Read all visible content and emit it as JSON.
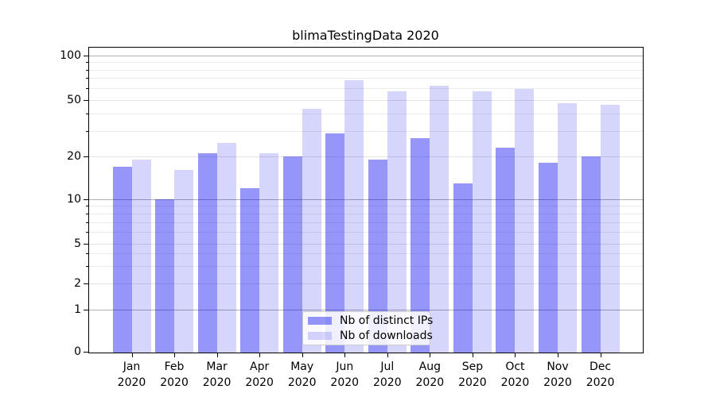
{
  "chart_data": {
    "type": "bar",
    "title": "blimaTestingData 2020",
    "categories": [
      "Jan",
      "Feb",
      "Mar",
      "Apr",
      "May",
      "Jun",
      "Jul",
      "Aug",
      "Sep",
      "Oct",
      "Nov",
      "Dec"
    ],
    "category_year": "2020",
    "series": [
      {
        "name": "Nb of distinct IPs",
        "color_hex": "#9a9af2",
        "color_rgba": "rgba(0,0,237,0.41)",
        "values": [
          17,
          10,
          21,
          12,
          20,
          29,
          19,
          27,
          13,
          23,
          18,
          20
        ]
      },
      {
        "name": "Nb of downloads",
        "color_hex": "#d8d8f8",
        "color_rgba": "rgba(0,0,237,0.16)",
        "values": [
          19,
          16,
          25,
          21,
          43,
          68,
          57,
          62,
          57,
          59,
          47,
          46
        ]
      }
    ],
    "y_axis": {
      "scale": "symlog",
      "major_tick_labels": [
        "0",
        "1",
        "2",
        "5",
        "10",
        "20",
        "50",
        "100"
      ],
      "major_ticks": [
        0,
        1,
        2,
        5,
        10,
        20,
        50,
        100
      ],
      "minor_ticks": [
        3,
        4,
        6,
        7,
        8,
        9,
        30,
        40,
        60,
        70,
        80,
        90
      ],
      "ylim": [
        0,
        115
      ]
    },
    "x_axis": {
      "tick_label_lines": 2
    },
    "legend": {
      "position": "lower center",
      "entries": [
        "Nb of distinct IPs",
        "Nb of downloads"
      ]
    },
    "grid": "on",
    "grid_major_color": "#b0b0b0",
    "grid_minor_color": "#e8e8e8",
    "spine_color": "#000000",
    "background_color": "#ffffff"
  }
}
